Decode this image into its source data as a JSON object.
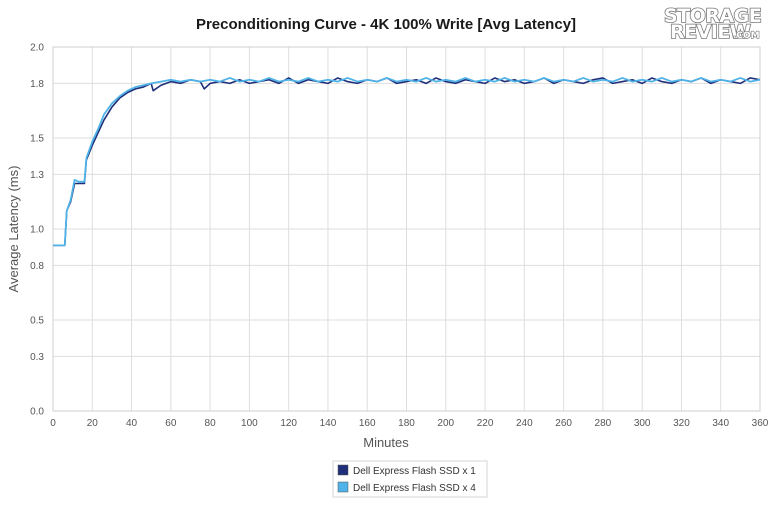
{
  "watermark": {
    "line1": "STORAGE",
    "line2": "REVIEW",
    "suffix": ".COM"
  },
  "chart_data": {
    "type": "line",
    "title": "Preconditioning Curve - 4K 100% Write [Avg Latency]",
    "xlabel": "Minutes",
    "ylabel": "Average Latency (ms)",
    "xlim": [
      0,
      360
    ],
    "ylim": [
      0,
      2.0
    ],
    "x_ticks": [
      0,
      20,
      40,
      60,
      80,
      100,
      120,
      140,
      160,
      180,
      200,
      220,
      240,
      260,
      280,
      300,
      320,
      340,
      360
    ],
    "y_ticks": [
      0.0,
      0.3,
      0.5,
      0.8,
      1.0,
      1.3,
      1.5,
      1.8,
      2.0
    ],
    "y_tick_labels": [
      "0.0",
      "0.3",
      "0.5",
      "0.8",
      "1.0",
      "1.3",
      "1.5",
      "1.8",
      "2.0"
    ],
    "grid": true,
    "legend_position": "bottom-center",
    "series": [
      {
        "name": "Dell Express Flash SSD x 1",
        "color": "#1f2f7a",
        "x": [
          0,
          6,
          7,
          9,
          11,
          13,
          16,
          17,
          20,
          23,
          26,
          30,
          34,
          38,
          42,
          46,
          50,
          51,
          55,
          60,
          65,
          70,
          75,
          77,
          80,
          85,
          90,
          95,
          100,
          105,
          110,
          115,
          120,
          125,
          130,
          135,
          140,
          145,
          150,
          155,
          160,
          165,
          170,
          175,
          180,
          185,
          190,
          195,
          200,
          205,
          210,
          215,
          220,
          225,
          230,
          235,
          240,
          245,
          250,
          255,
          260,
          265,
          270,
          275,
          280,
          285,
          290,
          295,
          300,
          305,
          310,
          315,
          320,
          325,
          330,
          335,
          340,
          345,
          350,
          355,
          360
        ],
        "y": [
          0.91,
          0.91,
          1.1,
          1.15,
          1.25,
          1.25,
          1.25,
          1.38,
          1.46,
          1.53,
          1.6,
          1.67,
          1.72,
          1.75,
          1.77,
          1.78,
          1.8,
          1.76,
          1.79,
          1.81,
          1.8,
          1.82,
          1.81,
          1.77,
          1.8,
          1.81,
          1.8,
          1.82,
          1.8,
          1.81,
          1.82,
          1.8,
          1.83,
          1.8,
          1.82,
          1.81,
          1.8,
          1.83,
          1.81,
          1.8,
          1.82,
          1.81,
          1.83,
          1.8,
          1.81,
          1.82,
          1.8,
          1.83,
          1.81,
          1.8,
          1.82,
          1.81,
          1.8,
          1.83,
          1.81,
          1.82,
          1.8,
          1.81,
          1.83,
          1.8,
          1.82,
          1.81,
          1.8,
          1.82,
          1.83,
          1.8,
          1.81,
          1.82,
          1.8,
          1.83,
          1.81,
          1.8,
          1.82,
          1.81,
          1.83,
          1.8,
          1.82,
          1.81,
          1.8,
          1.83,
          1.82
        ]
      },
      {
        "name": "Dell Express Flash SSD x 4",
        "color": "#4fb3e8",
        "x": [
          0,
          6,
          7,
          9,
          11,
          13,
          16,
          17,
          20,
          23,
          26,
          30,
          34,
          38,
          42,
          46,
          50,
          55,
          60,
          65,
          70,
          75,
          80,
          85,
          90,
          95,
          100,
          105,
          110,
          115,
          120,
          125,
          130,
          135,
          140,
          145,
          150,
          155,
          160,
          165,
          170,
          175,
          180,
          185,
          190,
          195,
          200,
          205,
          210,
          215,
          220,
          225,
          230,
          235,
          240,
          245,
          250,
          255,
          260,
          265,
          270,
          275,
          280,
          285,
          290,
          295,
          300,
          305,
          310,
          315,
          320,
          325,
          330,
          335,
          340,
          345,
          350,
          355,
          360
        ],
        "y": [
          0.91,
          0.91,
          1.1,
          1.16,
          1.27,
          1.26,
          1.26,
          1.39,
          1.48,
          1.55,
          1.63,
          1.69,
          1.73,
          1.76,
          1.78,
          1.79,
          1.8,
          1.81,
          1.82,
          1.81,
          1.82,
          1.81,
          1.82,
          1.81,
          1.83,
          1.81,
          1.82,
          1.81,
          1.83,
          1.81,
          1.82,
          1.81,
          1.83,
          1.81,
          1.82,
          1.81,
          1.83,
          1.81,
          1.82,
          1.81,
          1.83,
          1.81,
          1.82,
          1.81,
          1.83,
          1.81,
          1.82,
          1.81,
          1.83,
          1.81,
          1.82,
          1.81,
          1.83,
          1.81,
          1.82,
          1.81,
          1.83,
          1.81,
          1.82,
          1.81,
          1.83,
          1.81,
          1.82,
          1.81,
          1.83,
          1.81,
          1.82,
          1.81,
          1.83,
          1.81,
          1.82,
          1.81,
          1.83,
          1.81,
          1.82,
          1.81,
          1.83,
          1.81,
          1.82
        ]
      }
    ]
  }
}
